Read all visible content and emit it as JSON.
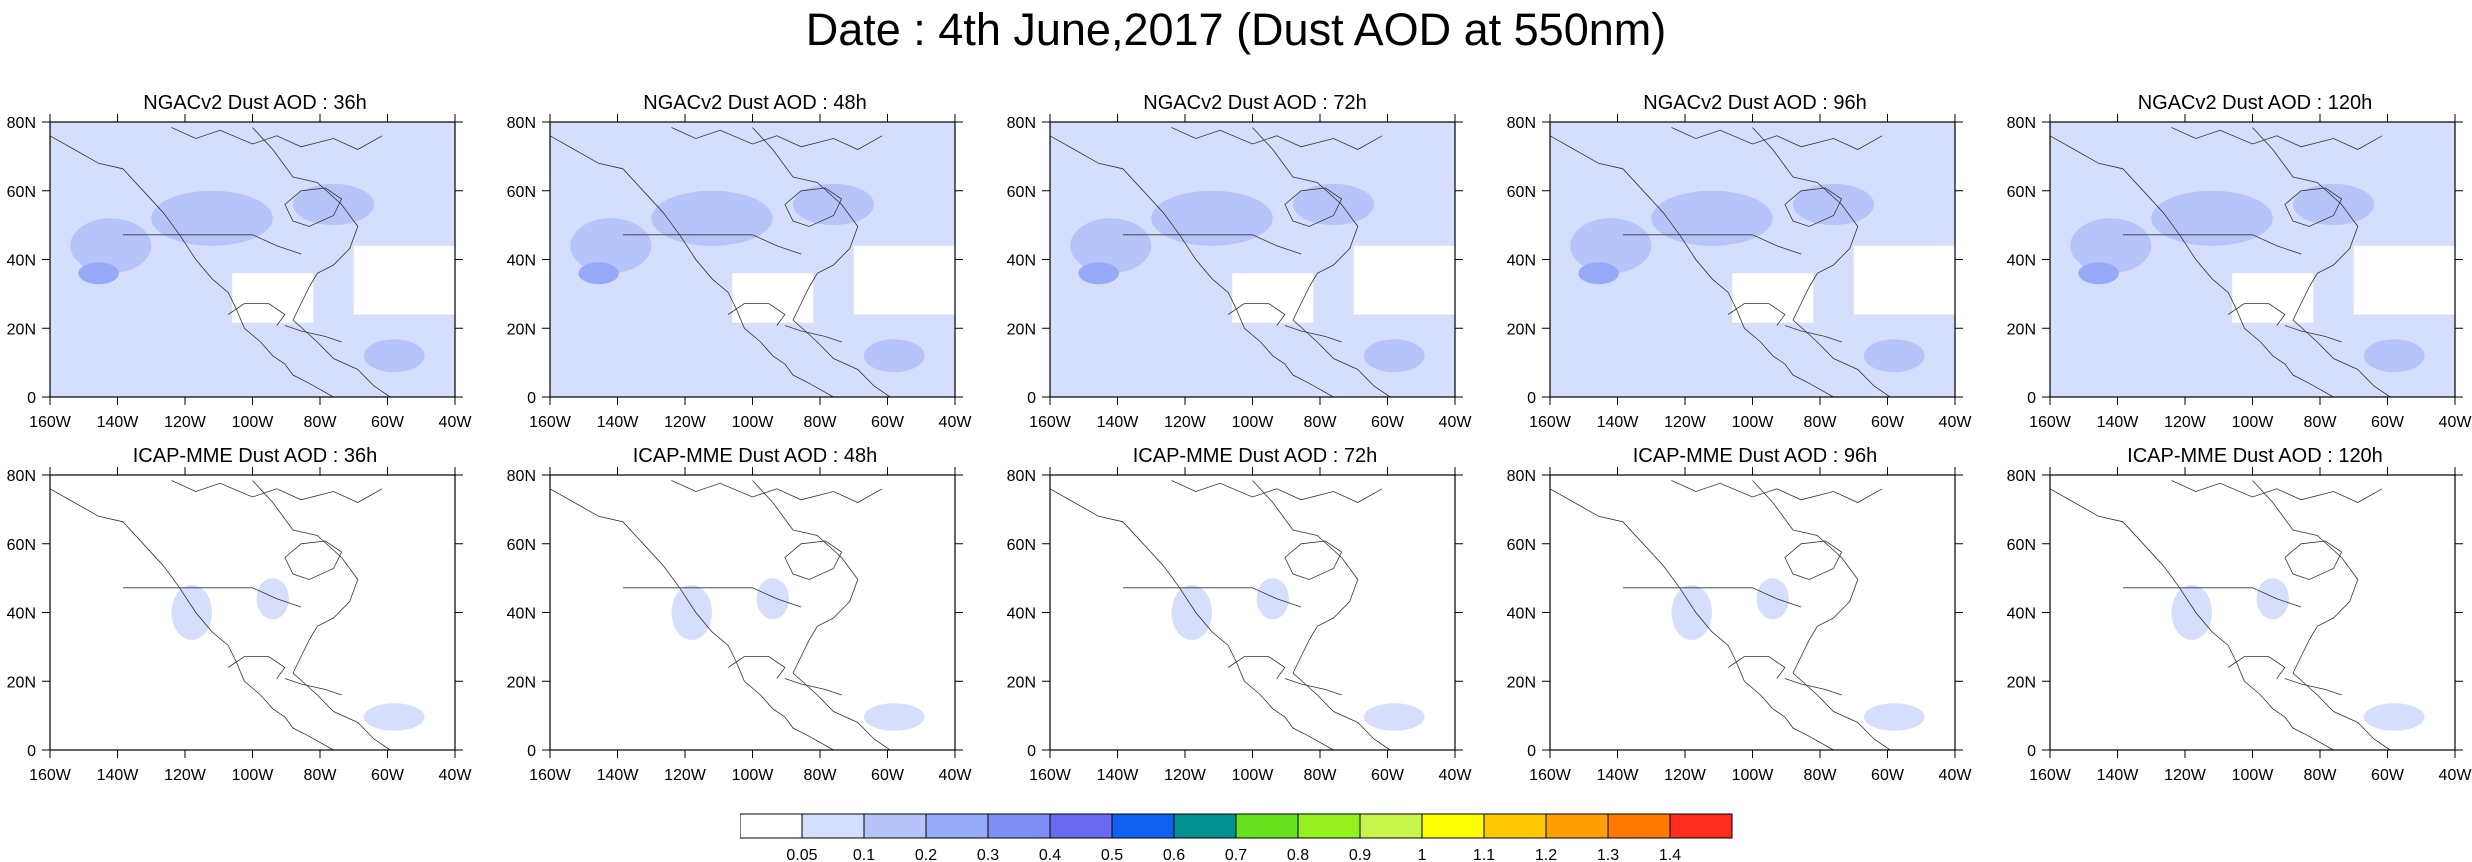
{
  "title": "Date : 4th June,2017 (Dust AOD at 550nm)",
  "panels": [
    {
      "title": "NGACv2 Dust AOD : 36h",
      "model": "NGACv2",
      "lead": "36h"
    },
    {
      "title": "NGACv2 Dust AOD : 48h",
      "model": "NGACv2",
      "lead": "48h"
    },
    {
      "title": "NGACv2 Dust AOD : 72h",
      "model": "NGACv2",
      "lead": "72h"
    },
    {
      "title": "NGACv2 Dust AOD : 96h",
      "model": "NGACv2",
      "lead": "96h"
    },
    {
      "title": "NGACv2 Dust AOD : 120h",
      "model": "NGACv2",
      "lead": "120h"
    },
    {
      "title": "ICAP-MME Dust AOD : 36h",
      "model": "ICAP-MME",
      "lead": "36h"
    },
    {
      "title": "ICAP-MME Dust AOD : 48h",
      "model": "ICAP-MME",
      "lead": "48h"
    },
    {
      "title": "ICAP-MME Dust AOD : 72h",
      "model": "ICAP-MME",
      "lead": "72h"
    },
    {
      "title": "ICAP-MME Dust AOD : 96h",
      "model": "ICAP-MME",
      "lead": "96h"
    },
    {
      "title": "ICAP-MME Dust AOD : 120h",
      "model": "ICAP-MME",
      "lead": "120h"
    }
  ],
  "lon_ticks": [
    "160W",
    "140W",
    "120W",
    "100W",
    "80W",
    "60W",
    "40W"
  ],
  "lat_ticks": [
    "0",
    "20N",
    "40N",
    "60N",
    "80N"
  ],
  "colorbar": {
    "labels": [
      "0.05",
      "0.1",
      "0.2",
      "0.3",
      "0.4",
      "0.5",
      "0.6",
      "0.7",
      "0.8",
      "0.9",
      "1",
      "1.1",
      "1.2",
      "1.3",
      "1.4"
    ],
    "colors": [
      "#ffffff",
      "#d5defc",
      "#b6c4fa",
      "#97aaf8",
      "#7f8ef5",
      "#6868f0",
      "#0f5ff0",
      "#009090",
      "#66e11e",
      "#96f01e",
      "#c8f54b",
      "#ffff00",
      "#ffc800",
      "#ffa000",
      "#ff7800",
      "#ff2d1e"
    ]
  },
  "map_colors": {
    "low": "#d5defc",
    "mid": "#b6c4fa",
    "high": "#97aaf8",
    "coast": "#333333"
  }
}
